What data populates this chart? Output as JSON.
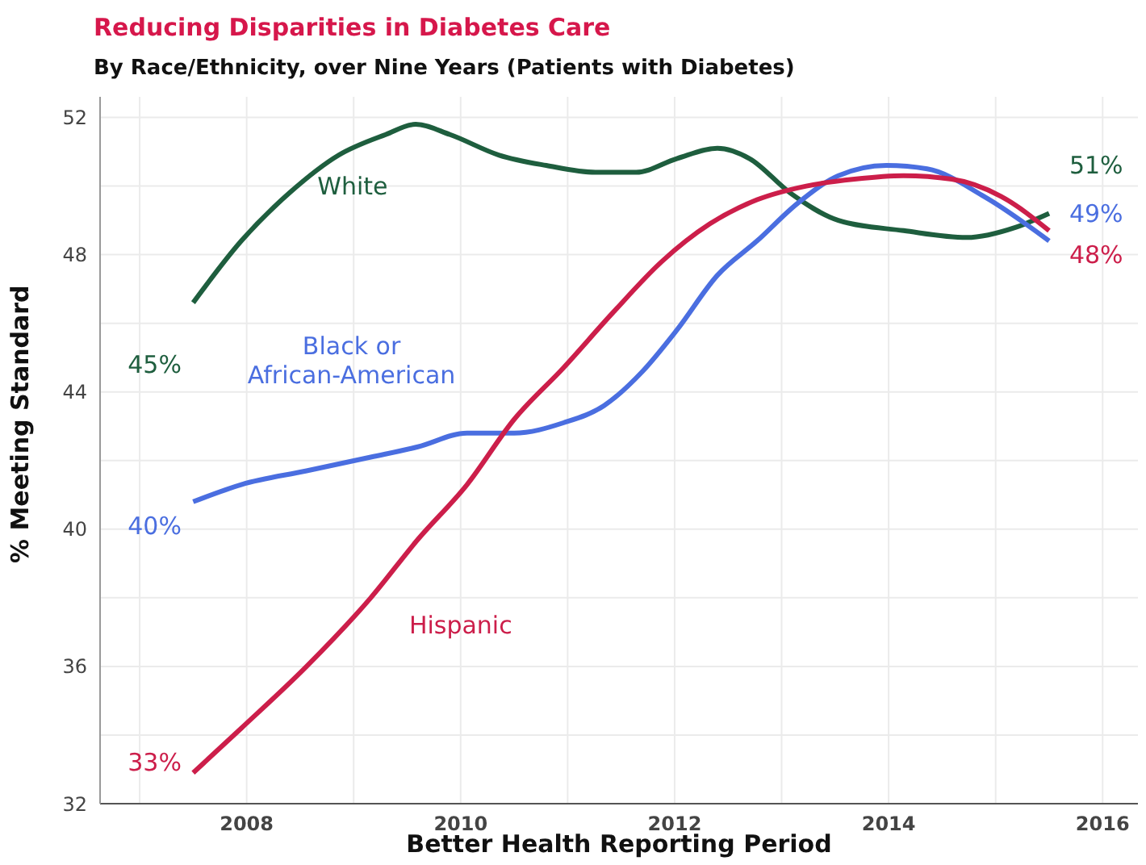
{
  "chart_data": {
    "type": "line",
    "title": "Reducing Disparities in Diabetes Care",
    "subtitle": "By Race/Ethnicity, over Nine Years (Patients with Diabetes)",
    "xlabel": "Better Health Reporting Period",
    "ylabel": "% Meeting Standard",
    "xlim": [
      2006.63,
      2016.33
    ],
    "ylim": [
      32,
      52.6
    ],
    "xticks": [
      {
        "value": 2007,
        "label": null
      },
      2008,
      {
        "value": 2009,
        "label": null
      },
      2010,
      {
        "value": 2011,
        "label": null
      },
      2012,
      {
        "value": 2013,
        "label": null
      },
      2014,
      {
        "value": 2015,
        "label": null
      },
      2016
    ],
    "yticks": [
      32,
      {
        "value": 34,
        "label": null
      },
      36,
      {
        "value": 38,
        "label": null
      },
      40,
      {
        "value": 42,
        "label": null
      },
      44,
      {
        "value": 46,
        "label": null
      },
      48,
      {
        "value": 50,
        "label": null
      },
      52
    ],
    "grid": true,
    "legend": false,
    "marker": "none",
    "line_style": "solid",
    "series": [
      {
        "name": "White",
        "color": "#1e5e3e",
        "x": [
          2007.5,
          2007.95,
          2008.4,
          2008.86,
          2009.3,
          2009.58,
          2009.9,
          2010.36,
          2010.8,
          2011.26,
          2011.64,
          2012.02,
          2012.4,
          2012.7,
          2013.08,
          2013.53,
          2014.14,
          2014.73,
          2015.19,
          2015.5
        ],
        "values": [
          46.6,
          48.4,
          49.8,
          50.9,
          51.5,
          51.8,
          51.5,
          50.9,
          50.6,
          50.4,
          50.4,
          50.8,
          51.1,
          50.8,
          49.8,
          49.0,
          48.7,
          48.5,
          48.8,
          49.2
        ]
      },
      {
        "name": "Black or African-American",
        "color": "#4a6ee0",
        "x": [
          2007.5,
          2007.95,
          2008.56,
          2009.16,
          2009.6,
          2010.06,
          2010.5,
          2010.96,
          2011.34,
          2011.7,
          2012.02,
          2012.4,
          2012.77,
          2013.15,
          2013.53,
          2013.98,
          2014.36,
          2014.89,
          2015.5
        ],
        "values": [
          40.8,
          41.3,
          41.7,
          42.1,
          42.4,
          42.8,
          42.8,
          43.1,
          43.6,
          44.6,
          45.8,
          47.4,
          48.4,
          49.5,
          50.3,
          50.6,
          50.5,
          49.7,
          48.4
        ]
      },
      {
        "name": "Hispanic",
        "color": "#cc1e4a",
        "x": [
          2007.5,
          2007.95,
          2008.56,
          2009.16,
          2009.6,
          2010.06,
          2010.5,
          2010.96,
          2011.42,
          2011.88,
          2012.33,
          2012.77,
          2013.23,
          2013.68,
          2014.14,
          2014.59,
          2015.05,
          2015.5
        ],
        "values": [
          32.9,
          34.2,
          36.0,
          38.0,
          39.7,
          41.3,
          43.2,
          44.7,
          46.3,
          47.8,
          48.9,
          49.6,
          50.0,
          50.2,
          50.3,
          50.2,
          49.7,
          48.7
        ]
      }
    ],
    "annotations": [
      "45%",
      "40%",
      "33%",
      "51%",
      "49%",
      "48%"
    ]
  }
}
